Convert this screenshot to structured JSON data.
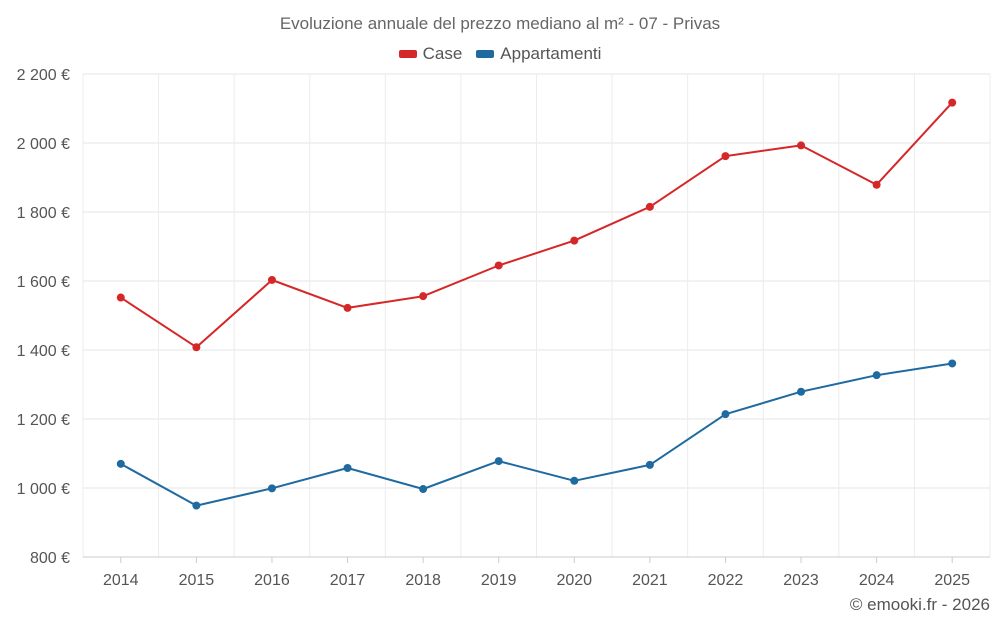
{
  "chart_data": {
    "type": "line",
    "title": "Evoluzione annuale del prezzo mediano al m² - 07 - Privas",
    "categories": [
      "2014",
      "2015",
      "2016",
      "2017",
      "2018",
      "2019",
      "2020",
      "2021",
      "2022",
      "2023",
      "2024",
      "2025"
    ],
    "series": [
      {
        "name": "Case",
        "color": "#d62728",
        "values": [
          1552,
          1408,
          1603,
          1522,
          1556,
          1645,
          1717,
          1815,
          1962,
          1993,
          1879,
          2117
        ]
      },
      {
        "name": "Appartamenti",
        "color": "#1f6aa0",
        "values": [
          1070,
          949,
          999,
          1058,
          997,
          1078,
          1021,
          1067,
          1214,
          1279,
          1327,
          1361
        ]
      }
    ],
    "ylim": [
      800,
      2200
    ],
    "yticks": [
      800,
      1000,
      1200,
      1400,
      1600,
      1800,
      2000,
      2200
    ],
    "ytick_labels": [
      "800 €",
      "1 000 €",
      "1 200 €",
      "1 400 €",
      "1 600 €",
      "1 800 €",
      "2 000 €",
      "2 200 €"
    ],
    "grid": true,
    "legend": "top-center"
  },
  "credit": "© emooki.fr - 2026"
}
